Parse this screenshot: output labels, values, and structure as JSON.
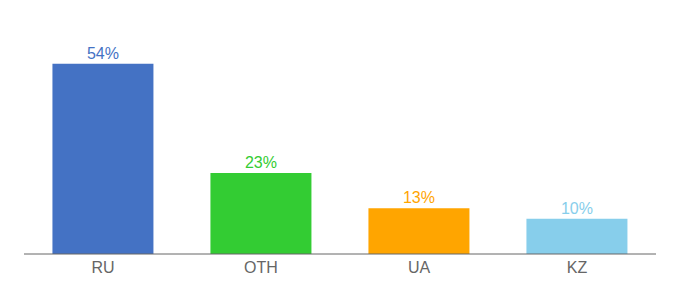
{
  "chart_data": {
    "type": "bar",
    "categories": [
      "RU",
      "OTH",
      "UA",
      "KZ"
    ],
    "values": [
      54,
      23,
      13,
      10
    ],
    "value_labels": [
      "54%",
      "23%",
      "13%",
      "10%"
    ],
    "data_labels": true,
    "colors": [
      "#4472C4",
      "#33CC33",
      "#FFA500",
      "#87CEEB"
    ],
    "ylim": [
      0,
      63
    ],
    "tick_labels": "x",
    "grid": false
  }
}
